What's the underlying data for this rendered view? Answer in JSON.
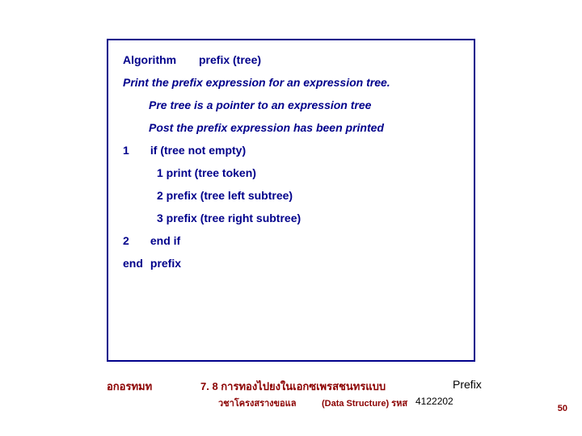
{
  "algorithm": {
    "title_label": "Algorithm",
    "title_name": "prefix (tree)",
    "desc": "Print the prefix expression for an expression tree.",
    "pre": "Pre tree is a pointer to an expression tree",
    "post": "Post the prefix expression has been printed",
    "step1_num": "1",
    "step1": "if (tree not empty)",
    "step1_1": "1 print (tree token)",
    "step1_2": "2 prefix (tree left subtree)",
    "step1_3": "3 prefix (tree right subtree)",
    "step2_num": "2",
    "step2": "end if",
    "end_label": "end",
    "end_name": "prefix"
  },
  "footer": {
    "left": "อกอรทมท",
    "center_top": "7. 8 การทองไปยงในเอกซเพรสชนทรแบบ",
    "center_sub1": "วชาโครงสรางขอแล",
    "center_sub2": "(Data Structure) รหส",
    "code": "4122202",
    "right": "Prefix",
    "page": "50"
  },
  "colors": {
    "box_border": "#00008b",
    "text_blue": "#00008b",
    "text_red": "#8b0000",
    "background": "#ffffff"
  }
}
